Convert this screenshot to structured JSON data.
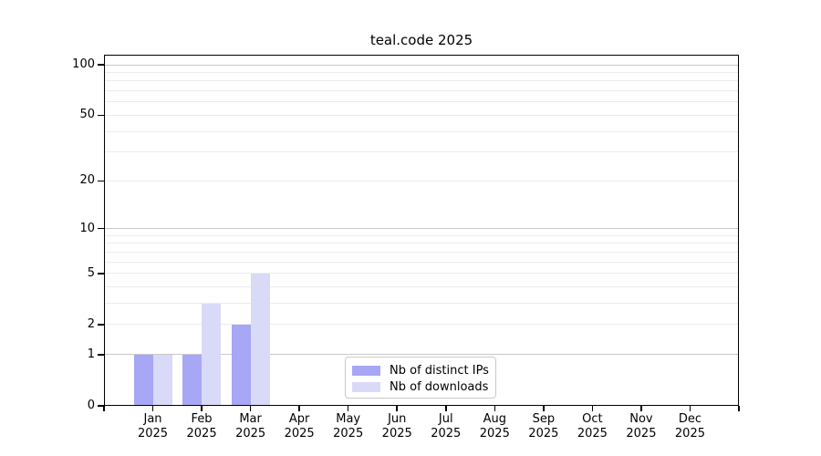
{
  "chart_data": {
    "type": "bar",
    "title": "teal.code 2025",
    "categories": [
      "Jan",
      "Feb",
      "Mar",
      "Apr",
      "May",
      "Jun",
      "Jul",
      "Aug",
      "Sep",
      "Oct",
      "Nov",
      "Dec"
    ],
    "year_label": "2025",
    "series": [
      {
        "name": "Nb of distinct IPs",
        "color": "#a7a7f5",
        "values": [
          1,
          1,
          2,
          0,
          0,
          0,
          0,
          0,
          0,
          0,
          0,
          0
        ]
      },
      {
        "name": "Nb of downloads",
        "color": "#d9d9f8",
        "values": [
          1,
          3,
          5,
          0,
          0,
          0,
          0,
          0,
          0,
          0,
          0,
          0
        ]
      }
    ],
    "yscale": "log1p",
    "ylim": [
      0,
      100
    ],
    "y_axis": {
      "ticks": [
        100,
        50,
        20,
        10,
        5,
        2,
        1,
        0
      ],
      "minor_gridlines": [
        3,
        4,
        6,
        7,
        8,
        9,
        30,
        40,
        60,
        70,
        80,
        90
      ],
      "emphasized_gridlines": [
        1,
        10,
        100
      ]
    },
    "grid": "horizontal",
    "legend_position": "bottom-center-inside"
  },
  "colors": {
    "strong_grid": "#c8c8c8",
    "light_grid": "#ececec",
    "axis": "#000000",
    "legend_border": "#c9c9c9",
    "background": "#ffffff"
  }
}
